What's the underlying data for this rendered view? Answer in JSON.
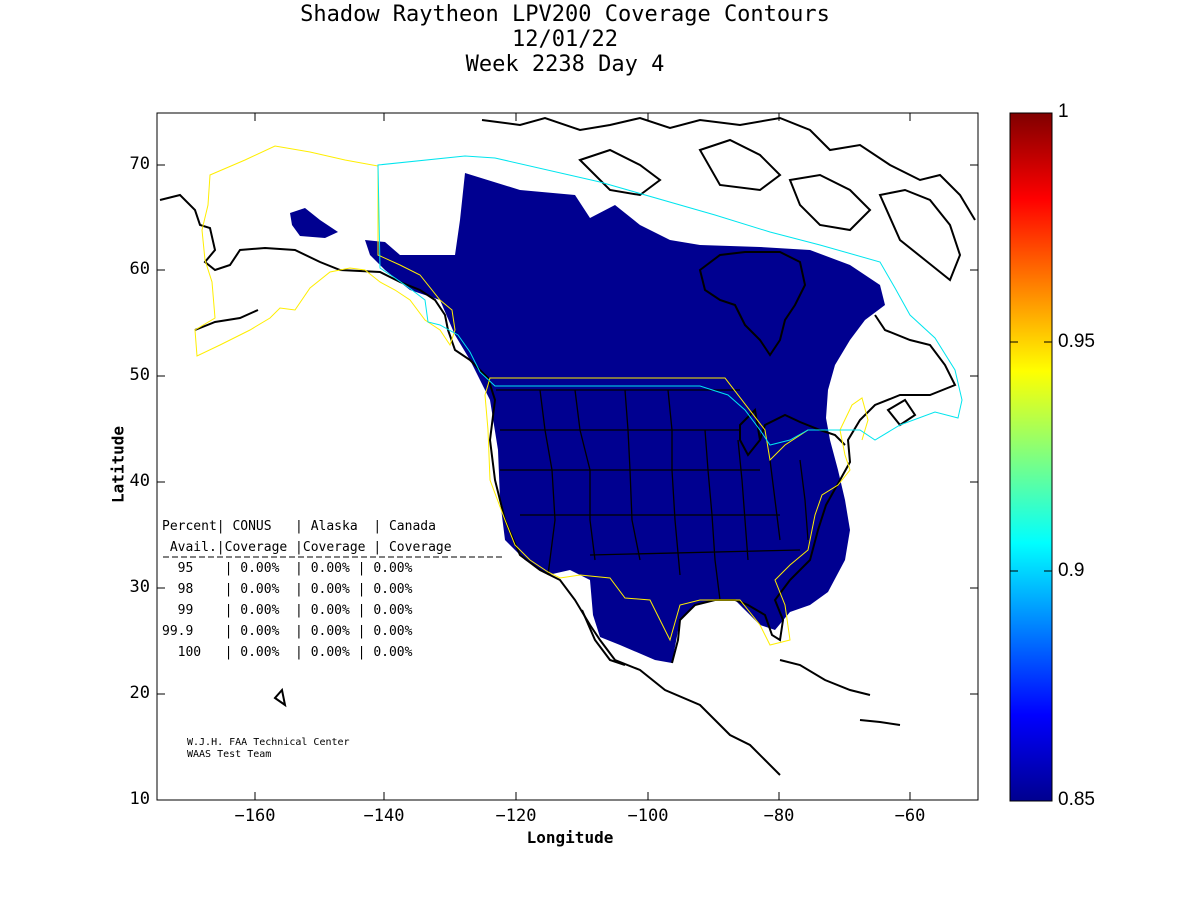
{
  "title": {
    "line1": "Shadow Raytheon LPV200 Coverage Contours",
    "line2": "12/01/22",
    "line3": "Week 2238 Day 4"
  },
  "axes": {
    "xlabel": "Longitude",
    "ylabel": "Latitude",
    "xticks": [
      "−160",
      "−140",
      "−120",
      "−100",
      "−80",
      "−60"
    ],
    "yticks": [
      "70",
      "60",
      "50",
      "40",
      "30",
      "20",
      "10"
    ],
    "xlim": [
      -175,
      -50
    ],
    "ylim": [
      10,
      75
    ]
  },
  "colorbar": {
    "ticks": [
      "1",
      "0.95",
      "0.9",
      "0.85"
    ],
    "range": [
      0.85,
      1
    ],
    "colormap": "jet"
  },
  "stats_table": {
    "header1": [
      "Percent",
      "CONUS",
      "Alaska",
      "Canada"
    ],
    "header2": [
      "Avail.",
      "Coverage",
      "Coverage",
      "Coverage"
    ],
    "rows": [
      [
        "95",
        "0.00%",
        "0.00%",
        "0.00%"
      ],
      [
        "98",
        "0.00%",
        "0.00%",
        "0.00%"
      ],
      [
        "99",
        "0.00%",
        "0.00%",
        "0.00%"
      ],
      [
        "99.9",
        "0.00%",
        "0.00%",
        "0.00%"
      ],
      [
        "100",
        "0.00%",
        "0.00%",
        "0.00%"
      ]
    ]
  },
  "credits": {
    "line1": "W.J.H. FAA Technical Center",
    "line2": "WAAS Test Team"
  },
  "colors": {
    "coverage_fill": "#000090",
    "alaska_boundary": "#ffee00",
    "canada_boundary": "#00e5ee",
    "coastline": "#000000"
  }
}
